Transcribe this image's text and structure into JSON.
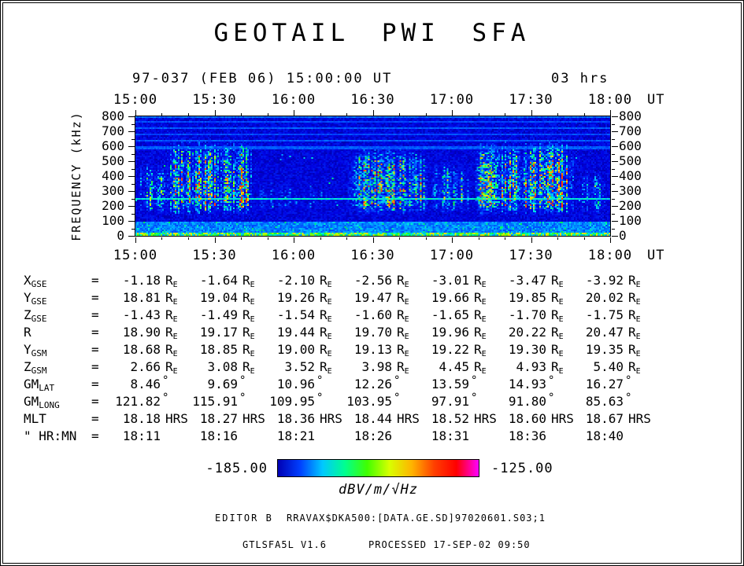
{
  "title": "GEOTAIL PWI SFA",
  "header": {
    "date_label": "97-037 (FEB 06) 15:00:00 UT",
    "duration_label": "03 hrs"
  },
  "time_axis": {
    "ticks": [
      "15:00",
      "15:30",
      "16:00",
      "16:30",
      "17:00",
      "17:30",
      "18:00"
    ],
    "unit": "UT"
  },
  "freq_axis": {
    "label": "FREQUENCY (kHz)",
    "ticks": [
      "800",
      "700",
      "600",
      "500",
      "400",
      "300",
      "200",
      "100",
      "0"
    ]
  },
  "ephemeris": {
    "eq": "=",
    "rows": [
      {
        "main": "X",
        "sub": "GSE",
        "unit": "Re",
        "values": [
          "-1.18",
          "-1.64",
          "-2.10",
          "-2.56",
          "-3.01",
          "-3.47",
          "-3.92"
        ]
      },
      {
        "main": "Y",
        "sub": "GSE",
        "unit": "Re",
        "values": [
          "18.81",
          "19.04",
          "19.26",
          "19.47",
          "19.66",
          "19.85",
          "20.02"
        ]
      },
      {
        "main": "Z",
        "sub": "GSE",
        "unit": "Re",
        "values": [
          "-1.43",
          "-1.49",
          "-1.54",
          "-1.60",
          "-1.65",
          "-1.70",
          "-1.75"
        ]
      },
      {
        "main": "R",
        "sub": "",
        "unit": "Re",
        "values": [
          "18.90",
          "19.17",
          "19.44",
          "19.70",
          "19.96",
          "20.22",
          "20.47"
        ]
      },
      {
        "main": "Y",
        "sub": "GSM",
        "unit": "Re",
        "values": [
          "18.68",
          "18.85",
          "19.00",
          "19.13",
          "19.22",
          "19.30",
          "19.35"
        ]
      },
      {
        "main": "Z",
        "sub": "GSM",
        "unit": "Re",
        "values": [
          "2.66",
          "3.08",
          "3.52",
          "3.98",
          "4.45",
          "4.93",
          "5.40"
        ]
      },
      {
        "main": "GM",
        "sub": "LAT",
        "unit": "°",
        "values": [
          "8.46",
          "9.69",
          "10.96",
          "12.26",
          "13.59",
          "14.93",
          "16.27"
        ]
      },
      {
        "main": "GM",
        "sub": "LONG",
        "unit": "°",
        "values": [
          "121.82",
          "115.91",
          "109.95",
          "103.95",
          "97.91",
          "91.80",
          "85.63"
        ]
      },
      {
        "main": "MLT",
        "sub": "",
        "unit": "HRS",
        "values": [
          "18.18",
          "18.27",
          "18.36",
          "18.44",
          "18.52",
          "18.60",
          "18.67"
        ]
      },
      {
        "main": "\" HR:MN",
        "sub": "",
        "unit": "",
        "values": [
          "18:11",
          "18:16",
          "18:21",
          "18:26",
          "18:31",
          "18:36",
          "18:40"
        ]
      }
    ]
  },
  "colorbar": {
    "min_label": "-185.00",
    "max_label": "-125.00",
    "unit_label": "dBV/m/√Hz",
    "gradient": [
      "#0000b4",
      "#0040ff",
      "#00c8ff",
      "#00ff90",
      "#40ff00",
      "#d8ff00",
      "#ffb400",
      "#ff4000",
      "#ff0000",
      "#ff00ff"
    ]
  },
  "footer": {
    "editor_label": "EDITOR B",
    "file_label": "RRAVAX$DKA500:[DATA.GE.SD]97020601.S03;1",
    "version_label": "GTLSFA5L V1.6",
    "processed_label": "PROCESSED 17-SEP-02  09:50"
  },
  "chart_data": {
    "type": "heatmap",
    "subtype": "frequency-time radio spectrogram",
    "title": "GEOTAIL PWI SFA",
    "xlabel": "UT",
    "x_ticks": [
      "15:00",
      "15:30",
      "16:00",
      "16:30",
      "17:00",
      "17:30",
      "18:00"
    ],
    "x_range": [
      "15:00",
      "18:00"
    ],
    "ylabel": "FREQUENCY (kHz)",
    "ylim": [
      0,
      800
    ],
    "y_ticks": [
      0,
      100,
      200,
      300,
      400,
      500,
      600,
      700,
      800
    ],
    "zlabel": "dBV/m/√Hz",
    "zlim": [
      -185.0,
      -125.0
    ],
    "legend_position": "bottom colorbar",
    "grid": false,
    "features": [
      "uniform deep-blue background near -185 dBV/m/sqrt(Hz)",
      "continuous intense low-frequency band below ~95 kHz with bright green-yellow speckle at 0-20 kHz",
      "bursty broadband emissions 130-700 kHz, strongest about 15:05-15:45, 16:20-17:05 and 17:15-17:50, cyan-green with yellow cores",
      "weaker sparse emission 15:45-16:20 below ~430 kHz",
      "narrow horizontal interference lines near 250 kHz (bright cyan) and several faint lines between 590 and 790 kHz"
    ],
    "colormap_stops": [
      {
        "t": 0.0,
        "c": [
          0,
          0,
          130
        ]
      },
      {
        "t": 0.1,
        "c": [
          0,
          0,
          225
        ]
      },
      {
        "t": 0.22,
        "c": [
          0,
          70,
          255
        ]
      },
      {
        "t": 0.35,
        "c": [
          0,
          180,
          255
        ]
      },
      {
        "t": 0.45,
        "c": [
          0,
          255,
          200
        ]
      },
      {
        "t": 0.55,
        "c": [
          0,
          240,
          70
        ]
      },
      {
        "t": 0.65,
        "c": [
          160,
          255,
          0
        ]
      },
      {
        "t": 0.75,
        "c": [
          255,
          220,
          0
        ]
      },
      {
        "t": 0.85,
        "c": [
          255,
          120,
          0
        ]
      },
      {
        "t": 0.93,
        "c": [
          255,
          30,
          0
        ]
      },
      {
        "t": 1.0,
        "c": [
          255,
          0,
          255
        ]
      }
    ],
    "render_params": {
      "seed": 1997,
      "base_level": 0.1,
      "noise": 0.05,
      "low_band_top_khz": 95,
      "low_band_level": 0.27,
      "bottom_line_level": 0.55,
      "bursts": [
        {
          "t0": 0.0,
          "t1": 0.07,
          "strength": 0.6,
          "fmax": 520
        },
        {
          "t0": 0.06,
          "t1": 0.25,
          "strength": 0.85,
          "fmax": 700
        },
        {
          "t0": 0.25,
          "t1": 0.44,
          "strength": 0.24,
          "fmax": 430
        },
        {
          "t0": 0.44,
          "t1": 0.62,
          "strength": 0.8,
          "fmax": 640
        },
        {
          "t0": 0.62,
          "t1": 0.71,
          "strength": 0.5,
          "fmax": 540
        },
        {
          "t0": 0.71,
          "t1": 0.93,
          "strength": 0.85,
          "fmax": 700
        },
        {
          "t0": 0.93,
          "t1": 1.0,
          "strength": 0.4,
          "fmax": 480
        }
      ],
      "hlines": [
        {
          "f": 247,
          "level": 0.42
        },
        {
          "f": 590,
          "level": 0.24
        },
        {
          "f": 634,
          "level": 0.24
        },
        {
          "f": 678,
          "level": 0.22
        },
        {
          "f": 722,
          "level": 0.24
        },
        {
          "f": 764,
          "level": 0.22
        },
        {
          "f": 793,
          "level": 0.26
        }
      ]
    }
  }
}
